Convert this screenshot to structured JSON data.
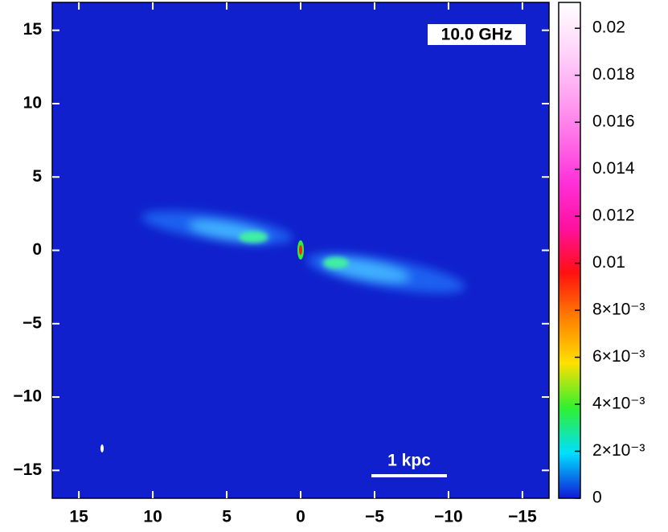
{
  "chart_data": {
    "type": "image",
    "annotation": "10.0 GHz",
    "scale_bar_label": "1 kpc",
    "xlim": [
      16.8,
      -16.8
    ],
    "ylim": [
      -16.9,
      16.9
    ],
    "xticks": [
      15,
      10,
      5,
      0,
      {
        "value": -5,
        "label": "−5"
      },
      {
        "value": -10,
        "label": "−10"
      },
      {
        "value": -15,
        "label": "−15"
      }
    ],
    "yticks": [
      15,
      10,
      5,
      0,
      {
        "value": -5,
        "label": "−5"
      },
      {
        "value": -10,
        "label": "−10"
      },
      {
        "value": -15,
        "label": "−15"
      }
    ],
    "clim": [
      0,
      0.0211
    ],
    "cticks": [
      0,
      {
        "value": 0.002,
        "label": "2×10⁻³"
      },
      {
        "value": 0.004,
        "label": "4×10⁻³"
      },
      {
        "value": 0.006,
        "label": "6×10⁻³"
      },
      {
        "value": 0.008,
        "label": "8×10⁻³"
      },
      0.01,
      0.012,
      0.014,
      0.016,
      0.018,
      0.02
    ],
    "colormap": [
      "#1018d8",
      "#00e0ff",
      "#30f030",
      "#ffe000",
      "#ff8000",
      "#ff1010",
      "#ff10a0",
      "#ff30d8",
      "#ff70e8",
      "#ffa8f2",
      "#ffd8fa",
      "#ffffff"
    ]
  }
}
